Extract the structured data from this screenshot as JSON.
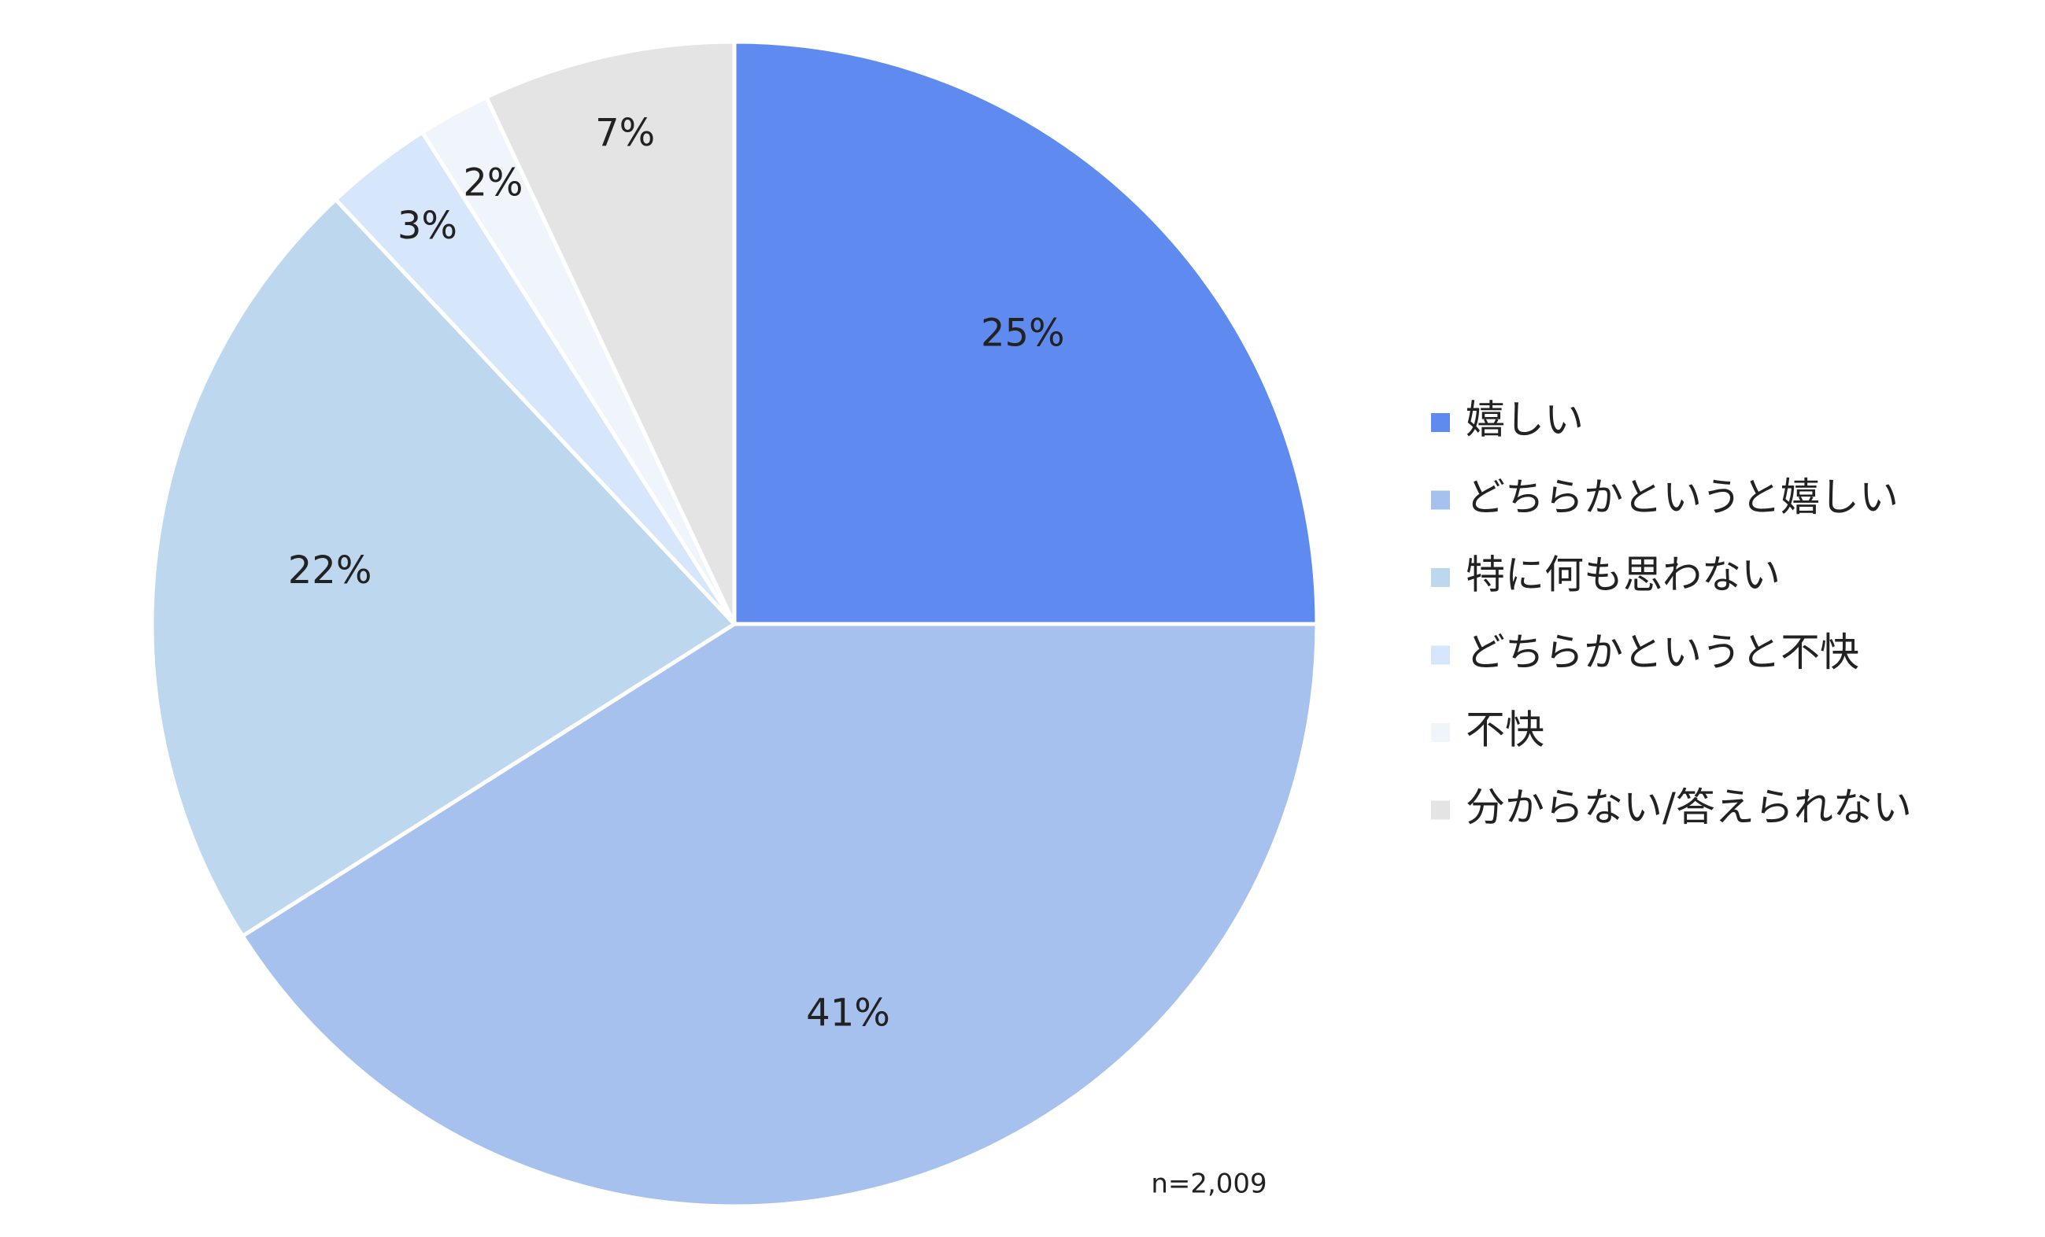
{
  "chart_data": {
    "type": "pie",
    "categories": [
      "嬉しい",
      "どちらかというと嬉しい",
      "特に何も思わない",
      "どちらかというと不快",
      "不快",
      "分からない/答えられない"
    ],
    "values": [
      25,
      41,
      22,
      3,
      2,
      7
    ],
    "value_labels": [
      "25%",
      "41%",
      "22%",
      "3%",
      "2%",
      "7%"
    ],
    "colors": [
      "#5f8bf0",
      "#a6c1ed",
      "#bdd7ee",
      "#d6e6fb",
      "#eff5fb",
      "#e4e4e4"
    ],
    "legend": "right",
    "annotation": "n=2,009"
  }
}
